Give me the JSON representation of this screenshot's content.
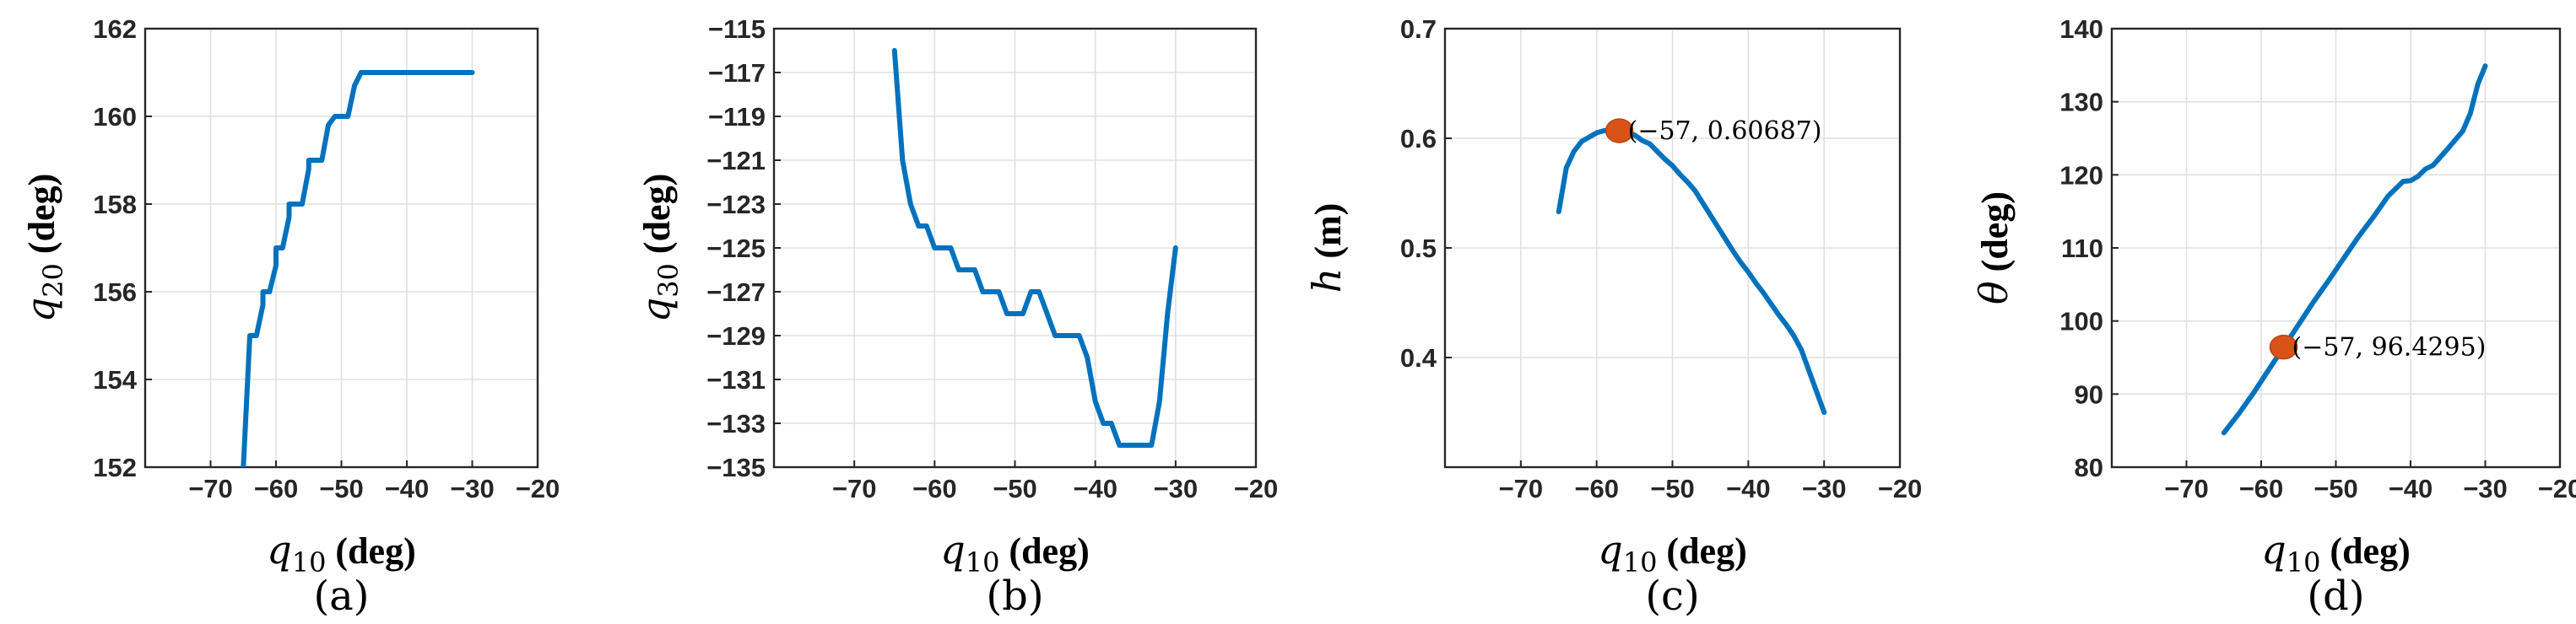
{
  "chart_data": [
    {
      "type": "line",
      "caption": "(a)",
      "xlabel": {
        "symbol": "q",
        "sub": "10",
        "unit": "(deg)"
      },
      "ylabel": {
        "symbol": "q",
        "sub": "20",
        "unit": "(deg)"
      },
      "xlim": [
        -80,
        -20
      ],
      "ylim": [
        152,
        162
      ],
      "xticks": [
        -70,
        -60,
        -50,
        -40,
        -30,
        -20
      ],
      "yticks": [
        152,
        154,
        156,
        158,
        160,
        162
      ],
      "grid": true,
      "series": [
        {
          "name": "q20",
          "color": "#0072bd",
          "x": [
            -65,
            -64,
            -64,
            -63,
            -62,
            -62,
            -61,
            -60,
            -60,
            -59,
            -58,
            -58,
            -57,
            -56,
            -55,
            -55,
            -54,
            -53,
            -52,
            -51,
            -50,
            -49,
            -48,
            -47,
            -46,
            -30
          ],
          "y": [
            152,
            155,
            155,
            155,
            155.7,
            156,
            156,
            156.6,
            157,
            157,
            157.7,
            158,
            158,
            158,
            158.8,
            159,
            159,
            159,
            159.8,
            160,
            160,
            160,
            160.7,
            161,
            161,
            161
          ]
        }
      ],
      "annotations": []
    },
    {
      "type": "line",
      "caption": "(b)",
      "xlabel": {
        "symbol": "q",
        "sub": "10",
        "unit": "(deg)"
      },
      "ylabel": {
        "symbol": "q",
        "sub": "30",
        "unit": "(deg)"
      },
      "xlim": [
        -80,
        -20
      ],
      "ylim": [
        -135,
        -115
      ],
      "xticks": [
        -70,
        -60,
        -50,
        -40,
        -30,
        -20
      ],
      "yticks": [
        -135,
        -133,
        -131,
        -129,
        -127,
        -125,
        -123,
        -121,
        -119,
        -117,
        -115
      ],
      "grid": true,
      "series": [
        {
          "name": "q30",
          "color": "#0072bd",
          "x": [
            -65,
            -64,
            -63,
            -62,
            -61,
            -60,
            -59,
            -58,
            -57,
            -56,
            -55,
            -54,
            -53,
            -52,
            -51,
            -50,
            -49,
            -48,
            -47,
            -46,
            -45,
            -44,
            -43,
            -42,
            -41,
            -40,
            -39,
            -38,
            -37,
            -36,
            -35,
            -34,
            -33,
            -32,
            -31,
            -30
          ],
          "y": [
            -116,
            -121,
            -123,
            -124,
            -124,
            -125,
            -125,
            -125,
            -126,
            -126,
            -126,
            -127,
            -127,
            -127,
            -128,
            -128,
            -128,
            -127,
            -127,
            -128,
            -129,
            -129,
            -129,
            -129,
            -130,
            -132,
            -133,
            -133,
            -134,
            -134,
            -134,
            -134,
            -134,
            -132,
            -128,
            -125
          ]
        }
      ],
      "annotations": []
    },
    {
      "type": "line",
      "caption": "(c)",
      "xlabel": {
        "symbol": "q",
        "sub": "10",
        "unit": "(deg)"
      },
      "ylabel": {
        "symbol": "h",
        "sub": "",
        "unit": "(m)"
      },
      "xlim": [
        -80,
        -20
      ],
      "ylim": [
        0.3,
        0.7
      ],
      "xticks": [
        -70,
        -60,
        -50,
        -40,
        -30,
        -20
      ],
      "yticks": [
        0.4,
        0.5,
        0.6,
        0.7
      ],
      "grid": true,
      "series": [
        {
          "name": "h",
          "color": "#0072bd",
          "x": [
            -65,
            -64,
            -63,
            -62,
            -61,
            -60,
            -59,
            -58,
            -57,
            -56,
            -55,
            -54,
            -53,
            -52,
            -51,
            -50,
            -49,
            -48,
            -47,
            -46,
            -45,
            -44,
            -43,
            -42,
            -41,
            -40,
            -39,
            -38,
            -37,
            -36,
            -35,
            -34,
            -33,
            -32,
            -31,
            -30
          ],
          "y": [
            0.533,
            0.573,
            0.588,
            0.597,
            0.601,
            0.605,
            0.607,
            0.607,
            0.60687,
            0.606,
            0.603,
            0.598,
            0.595,
            0.588,
            0.581,
            0.575,
            0.567,
            0.56,
            0.552,
            0.541,
            0.53,
            0.519,
            0.508,
            0.497,
            0.487,
            0.478,
            0.468,
            0.459,
            0.449,
            0.439,
            0.43,
            0.42,
            0.407,
            0.388,
            0.369,
            0.35
          ]
        }
      ],
      "annotations": [
        {
          "x": -57,
          "y": 0.60687,
          "text": "(−57, 0.60687)"
        }
      ]
    },
    {
      "type": "line",
      "caption": "(d)",
      "xlabel": {
        "symbol": "q",
        "sub": "10",
        "unit": "(deg)"
      },
      "ylabel": {
        "symbol": "θ",
        "sub": "",
        "unit": "(deg)"
      },
      "xlim": [
        -80,
        -20
      ],
      "ylim": [
        80,
        140
      ],
      "xticks": [
        -70,
        -60,
        -50,
        -40,
        -30,
        -20
      ],
      "yticks": [
        80,
        90,
        100,
        110,
        120,
        130,
        140
      ],
      "grid": true,
      "series": [
        {
          "name": "theta",
          "color": "#0072bd",
          "x": [
            -65,
            -63,
            -61,
            -59,
            -57,
            -55,
            -53,
            -51,
            -49,
            -47,
            -45,
            -43,
            -41,
            -40,
            -39,
            -38,
            -37,
            -35,
            -33,
            -32,
            -31,
            -30
          ],
          "y": [
            84.7,
            87.3,
            90.2,
            93.3,
            96.4,
            99.5,
            102.6,
            105.5,
            108.5,
            111.5,
            114.2,
            117.1,
            119.1,
            119.2,
            119.8,
            120.8,
            121.3,
            123.6,
            126,
            128.4,
            132.4,
            134.9
          ]
        }
      ],
      "annotations": [
        {
          "x": -57,
          "y": 96.4295,
          "text": "(−57, 96.4295)"
        }
      ]
    }
  ]
}
